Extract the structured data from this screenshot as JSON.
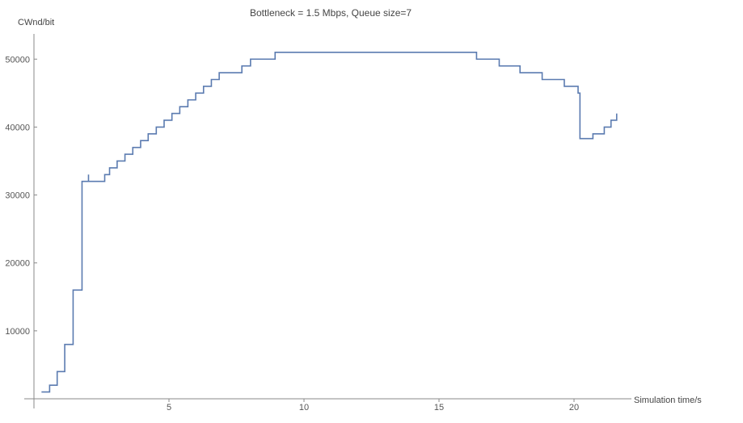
{
  "chart_data": {
    "type": "line",
    "title": "Bottleneck = 1.5 Mbps, Queue size=7",
    "xlabel": "Simulation time/s",
    "ylabel": "CWnd/bit",
    "xlim": [
      0,
      25.5
    ],
    "ylim": [
      0,
      54000
    ],
    "x_ticks": [
      5,
      10,
      15,
      20
    ],
    "y_ticks": [
      10000,
      20000,
      30000,
      40000,
      50000
    ],
    "grid": false,
    "step": "after",
    "series": [
      {
        "color": "#5b7bb0",
        "points": [
          [
            0.28,
            1000
          ],
          [
            0.58,
            2000
          ],
          [
            0.86,
            4000
          ],
          [
            1.14,
            8000
          ],
          [
            1.45,
            16000
          ],
          [
            1.78,
            32000
          ],
          [
            2.02,
            33000
          ],
          [
            2.02,
            32000
          ],
          [
            2.62,
            33000
          ],
          [
            2.8,
            34000
          ],
          [
            3.08,
            35000
          ],
          [
            3.37,
            36000
          ],
          [
            3.66,
            37000
          ],
          [
            3.95,
            38000
          ],
          [
            4.23,
            39000
          ],
          [
            4.53,
            40000
          ],
          [
            4.82,
            41000
          ],
          [
            5.11,
            42000
          ],
          [
            5.4,
            43000
          ],
          [
            5.7,
            44000
          ],
          [
            5.99,
            45000
          ],
          [
            6.28,
            46000
          ],
          [
            6.57,
            47000
          ],
          [
            6.86,
            48000
          ],
          [
            7.7,
            49000
          ],
          [
            8.02,
            50000
          ],
          [
            8.93,
            51000
          ],
          [
            16.39,
            50000
          ],
          [
            17.23,
            49000
          ],
          [
            18.0,
            48000
          ],
          [
            18.82,
            47000
          ],
          [
            19.64,
            46000
          ],
          [
            20.15,
            45000
          ],
          [
            20.22,
            38300
          ],
          [
            20.7,
            39000
          ],
          [
            21.12,
            40000
          ],
          [
            21.37,
            41000
          ],
          [
            21.58,
            42000
          ]
        ]
      }
    ]
  }
}
